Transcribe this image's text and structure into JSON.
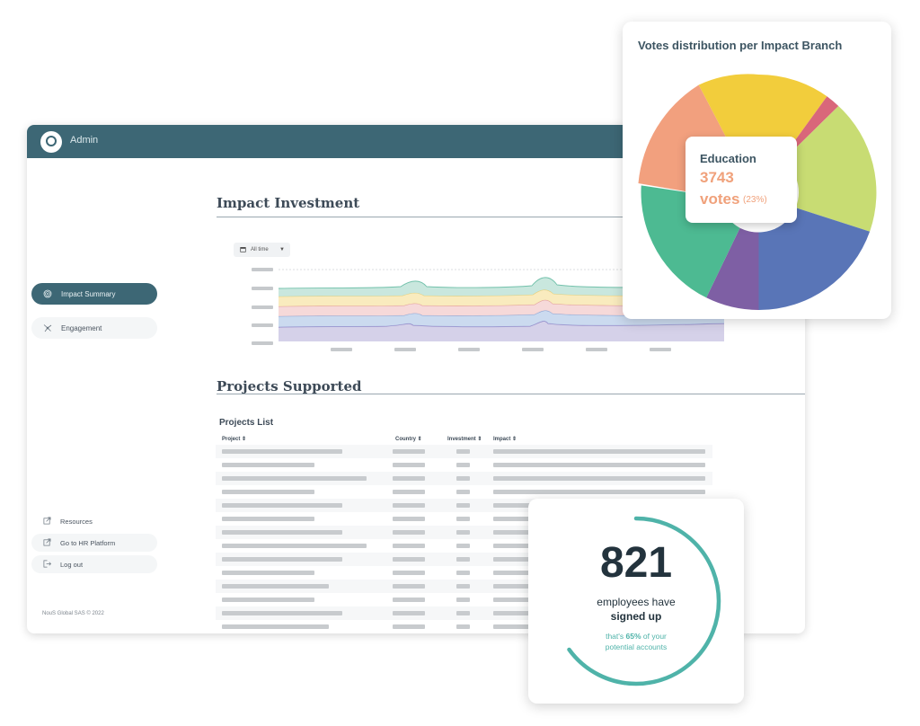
{
  "app": {
    "header": {
      "title": "Admin"
    },
    "sidebar": {
      "nav": [
        {
          "label": "Impact Summary",
          "icon": "fingerprint-icon",
          "active": true
        },
        {
          "label": "Engagement",
          "icon": "network-icon",
          "active": false
        }
      ],
      "links": [
        {
          "label": "Resources",
          "icon": "external-link-icon"
        },
        {
          "label": "Go to HR Platform",
          "icon": "external-link-icon"
        },
        {
          "label": "Log out",
          "icon": "logout-icon"
        }
      ],
      "footer": "NouS Global SAS © 2022"
    },
    "impact_investment": {
      "title": "Impact Investment",
      "time_filter": "All time"
    },
    "projects": {
      "section_title": "Projects Supported",
      "list_title": "Projects List",
      "columns": [
        "Project ⇕",
        "Country ⇕",
        "Investment ⇕",
        "Impact ⇕"
      ],
      "row_count": 14
    }
  },
  "votes_card": {
    "title": "Votes distribution per Impact Branch",
    "tooltip": {
      "label": "Education",
      "value": "3743",
      "unit": "votes",
      "percent": "(23%)"
    }
  },
  "employees_card": {
    "count": "821",
    "line1": "employees have",
    "line2": "signed up",
    "sub_prefix": "that's",
    "sub_percent": "65%",
    "sub_suffix": "of your",
    "sub_line2": "potential accounts",
    "progress": 0.65
  },
  "colors": {
    "header": "#3d6775",
    "accent": "#4fb3a9",
    "education": "#f0a17b"
  }
}
